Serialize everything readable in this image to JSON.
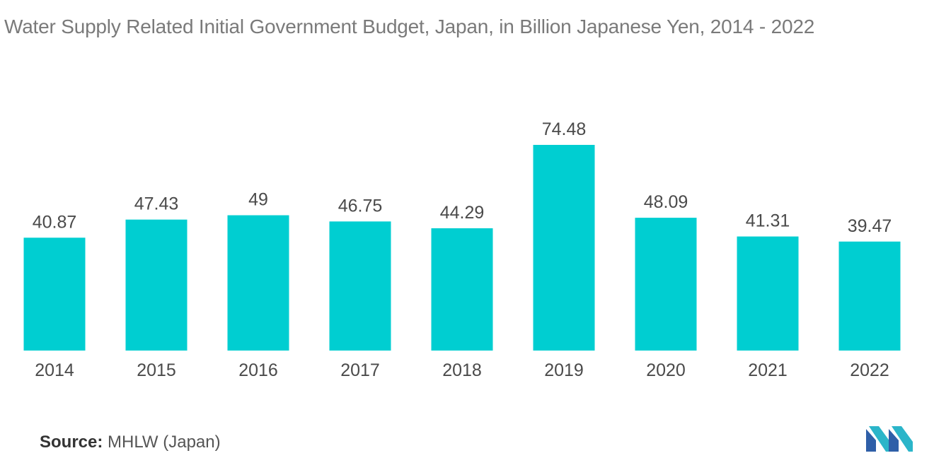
{
  "title": "Water Supply Related Initial Government Budget, Japan, in Billion Japanese Yen, 2014 - 2022",
  "source": {
    "label": "Source:",
    "value": "MHLW (Japan)"
  },
  "logo": {
    "icon": "mordor-intelligence-logo-icon",
    "colors": [
      "#2f5fa8",
      "#2bb5c9"
    ]
  },
  "colors": {
    "bar": "#00ced1",
    "text": "#4a4a4a",
    "title": "#7a7a7a"
  },
  "chart_data": {
    "type": "bar",
    "title": "Water Supply Related Initial Government Budget, Japan, in Billion Japanese Yen, 2014 - 2022",
    "xlabel": "",
    "ylabel": "",
    "categories": [
      "2014",
      "2015",
      "2016",
      "2017",
      "2018",
      "2019",
      "2020",
      "2021",
      "2022"
    ],
    "values": [
      40.87,
      47.43,
      49,
      46.75,
      44.29,
      74.48,
      48.09,
      41.31,
      39.47
    ],
    "data_labels": [
      "40.87",
      "47.43",
      "49",
      "46.75",
      "44.29",
      "74.48",
      "48.09",
      "41.31",
      "39.47"
    ],
    "ylim": [
      0,
      74.48
    ],
    "grid": false,
    "legend": "none"
  }
}
